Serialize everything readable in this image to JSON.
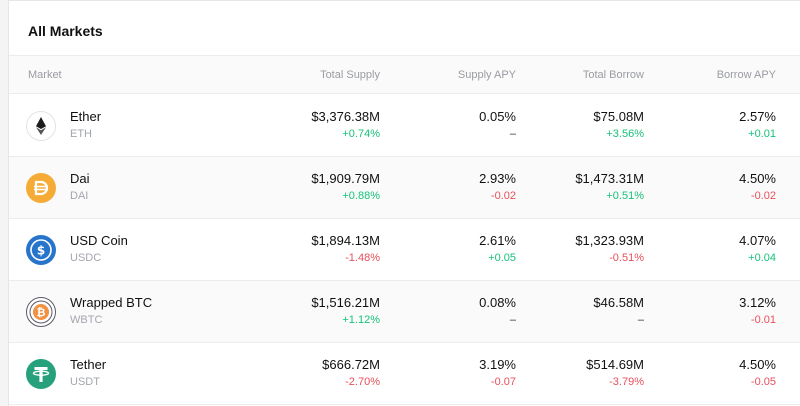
{
  "title": "All Markets",
  "columns": {
    "market": "Market",
    "total_supply": "Total Supply",
    "supply_apy": "Supply APY",
    "total_borrow": "Total Borrow",
    "borrow_apy": "Borrow APY"
  },
  "markets": [
    {
      "name": "Ether",
      "symbol": "ETH",
      "icon": "ether-icon",
      "total_supply": "$3,376.38M",
      "total_supply_change": "+0.74%",
      "total_supply_dir": "pos",
      "supply_apy": "0.05%",
      "supply_apy_change": "–",
      "supply_apy_dir": "neu",
      "total_borrow": "$75.08M",
      "total_borrow_change": "+3.56%",
      "total_borrow_dir": "pos",
      "borrow_apy": "2.57%",
      "borrow_apy_change": "+0.01",
      "borrow_apy_dir": "pos"
    },
    {
      "name": "Dai",
      "symbol": "DAI",
      "icon": "dai-icon",
      "total_supply": "$1,909.79M",
      "total_supply_change": "+0.88%",
      "total_supply_dir": "pos",
      "supply_apy": "2.93%",
      "supply_apy_change": "-0.02",
      "supply_apy_dir": "neg",
      "total_borrow": "$1,473.31M",
      "total_borrow_change": "+0.51%",
      "total_borrow_dir": "pos",
      "borrow_apy": "4.50%",
      "borrow_apy_change": "-0.02",
      "borrow_apy_dir": "neg"
    },
    {
      "name": "USD Coin",
      "symbol": "USDC",
      "icon": "usdc-icon",
      "total_supply": "$1,894.13M",
      "total_supply_change": "-1.48%",
      "total_supply_dir": "neg",
      "supply_apy": "2.61%",
      "supply_apy_change": "+0.05",
      "supply_apy_dir": "pos",
      "total_borrow": "$1,323.93M",
      "total_borrow_change": "-0.51%",
      "total_borrow_dir": "neg",
      "borrow_apy": "4.07%",
      "borrow_apy_change": "+0.04",
      "borrow_apy_dir": "pos"
    },
    {
      "name": "Wrapped BTC",
      "symbol": "WBTC",
      "icon": "wbtc-icon",
      "total_supply": "$1,516.21M",
      "total_supply_change": "+1.12%",
      "total_supply_dir": "pos",
      "supply_apy": "0.08%",
      "supply_apy_change": "–",
      "supply_apy_dir": "neu",
      "total_borrow": "$46.58M",
      "total_borrow_change": "–",
      "total_borrow_dir": "neu",
      "borrow_apy": "3.12%",
      "borrow_apy_change": "-0.01",
      "borrow_apy_dir": "neg"
    },
    {
      "name": "Tether",
      "symbol": "USDT",
      "icon": "tether-icon",
      "total_supply": "$666.72M",
      "total_supply_change": "-2.70%",
      "total_supply_dir": "neg",
      "supply_apy": "3.19%",
      "supply_apy_change": "-0.07",
      "supply_apy_dir": "neg",
      "total_borrow": "$514.69M",
      "total_borrow_change": "-3.79%",
      "total_borrow_dir": "neg",
      "borrow_apy": "4.50%",
      "borrow_apy_change": "-0.05",
      "borrow_apy_dir": "neg"
    }
  ],
  "colors": {
    "positive": "#17c27a",
    "negative": "#e8505b",
    "dai": "#f5ac37",
    "usdc": "#2775ca",
    "tether": "#26a17b",
    "wbtc": "#f09242"
  }
}
